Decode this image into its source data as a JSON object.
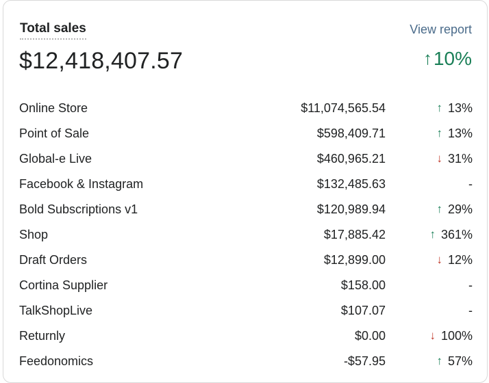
{
  "header": {
    "title": "Total sales",
    "link": "View report"
  },
  "summary": {
    "total": "$12,418,407.57",
    "change": "10%",
    "direction": "up"
  },
  "channels": [
    {
      "name": "Online Store",
      "amount": "$11,074,565.54",
      "change": "13%",
      "direction": "up"
    },
    {
      "name": "Point of Sale",
      "amount": "$598,409.71",
      "change": "13%",
      "direction": "up"
    },
    {
      "name": "Global-e Live",
      "amount": "$460,965.21",
      "change": "31%",
      "direction": "down"
    },
    {
      "name": "Facebook & Instagram",
      "amount": "$132,485.63",
      "change": "-",
      "direction": "none"
    },
    {
      "name": "Bold Subscriptions v1",
      "amount": "$120,989.94",
      "change": "29%",
      "direction": "up"
    },
    {
      "name": "Shop",
      "amount": "$17,885.42",
      "change": "361%",
      "direction": "up"
    },
    {
      "name": "Draft Orders",
      "amount": "$12,899.00",
      "change": "12%",
      "direction": "down"
    },
    {
      "name": "Cortina Supplier",
      "amount": "$158.00",
      "change": "-",
      "direction": "none"
    },
    {
      "name": "TalkShopLive",
      "amount": "$107.07",
      "change": "-",
      "direction": "none"
    },
    {
      "name": "Returnly",
      "amount": "$0.00",
      "change": "100%",
      "direction": "down"
    },
    {
      "name": "Feedonomics",
      "amount": "-$57.95",
      "change": "57%",
      "direction": "up"
    }
  ],
  "colors": {
    "up": "#1a7f57",
    "down": "#c0392b",
    "link": "#4a6b8a"
  },
  "icons": {
    "up": "arrow-up-icon",
    "down": "arrow-down-icon"
  }
}
